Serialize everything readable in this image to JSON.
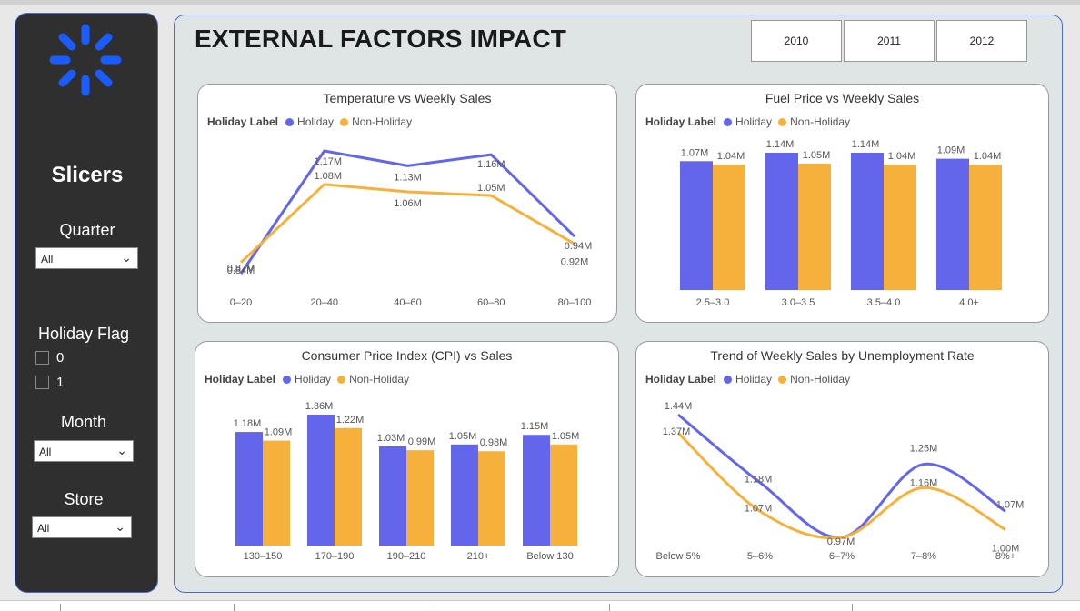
{
  "page": {
    "title": "EXTERNAL FACTORS IMPACT",
    "years": [
      "2010",
      "2011",
      "2012"
    ]
  },
  "colors": {
    "holiday": "#6366eb",
    "non_holiday": "#f6b13c"
  },
  "sidebar": {
    "title": "Slicers",
    "quarter": {
      "label": "Quarter",
      "value": "All"
    },
    "holiday_flag": {
      "label": "Holiday Flag",
      "options": [
        "0",
        "1"
      ]
    },
    "month": {
      "label": "Month",
      "value": "All"
    },
    "store": {
      "label": "Store",
      "value": "All"
    }
  },
  "legend": {
    "title": "Holiday Label",
    "holiday": "Holiday",
    "non_holiday": "Non-Holiday"
  },
  "chart_data": [
    {
      "id": "temperature",
      "type": "line",
      "title": "Temperature vs Weekly Sales",
      "categories": [
        "0–20",
        "20–40",
        "40–60",
        "60–80",
        "80–100"
      ],
      "series": [
        {
          "name": "Holiday",
          "values": [
            0.84,
            1.17,
            1.13,
            1.16,
            0.94
          ],
          "labels": [
            "0.84M",
            "1.17M",
            "1.13M",
            "1.16M",
            "0.94M"
          ]
        },
        {
          "name": "Non-Holiday",
          "values": [
            0.87,
            1.08,
            1.06,
            1.05,
            0.92
          ],
          "labels": [
            "0.87M",
            "1.08M",
            "1.06M",
            "1.05M",
            "0.92M"
          ]
        }
      ]
    },
    {
      "id": "fuel",
      "type": "bar",
      "title": "Fuel Price vs Weekly Sales",
      "categories": [
        "2.5–3.0",
        "3.0–3.5",
        "3.5–4.0",
        "4.0+"
      ],
      "series": [
        {
          "name": "Holiday",
          "values": [
            1.07,
            1.14,
            1.14,
            1.09
          ],
          "labels": [
            "1.07M",
            "1.14M",
            "1.14M",
            "1.09M"
          ]
        },
        {
          "name": "Non-Holiday",
          "values": [
            1.04,
            1.05,
            1.04,
            1.04
          ],
          "labels": [
            "1.04M",
            "1.05M",
            "1.04M",
            "1.04M"
          ]
        }
      ]
    },
    {
      "id": "cpi",
      "type": "bar",
      "title": "Consumer Price Index (CPI) vs Sales",
      "categories": [
        "130–150",
        "170–190",
        "190–210",
        "210+",
        "Below 130"
      ],
      "series": [
        {
          "name": "Holiday",
          "values": [
            1.18,
            1.36,
            1.03,
            1.05,
            1.15
          ],
          "labels": [
            "1.18M",
            "1.36M",
            "1.03M",
            "1.05M",
            "1.15M"
          ]
        },
        {
          "name": "Non-Holiday",
          "values": [
            1.09,
            1.22,
            0.99,
            0.98,
            1.05
          ],
          "labels": [
            "1.09M",
            "1.22M",
            "0.99M",
            "0.98M",
            "1.05M"
          ]
        }
      ]
    },
    {
      "id": "unemployment",
      "type": "line",
      "title": "Trend of Weekly Sales by Unemployment Rate",
      "categories": [
        "Below 5%",
        "5–6%",
        "6–7%",
        "7–8%",
        "8%+"
      ],
      "series": [
        {
          "name": "Holiday",
          "values": [
            1.44,
            1.18,
            0.97,
            1.25,
            1.07
          ],
          "labels": [
            "1.44M",
            "1.18M",
            "",
            "1.25M",
            "1.07M"
          ]
        },
        {
          "name": "Non-Holiday",
          "values": [
            1.37,
            1.07,
            0.97,
            1.16,
            1.0
          ],
          "labels": [
            "1.37M",
            "1.07M",
            "0.97M",
            "1.16M",
            "1.00M"
          ]
        }
      ]
    }
  ]
}
